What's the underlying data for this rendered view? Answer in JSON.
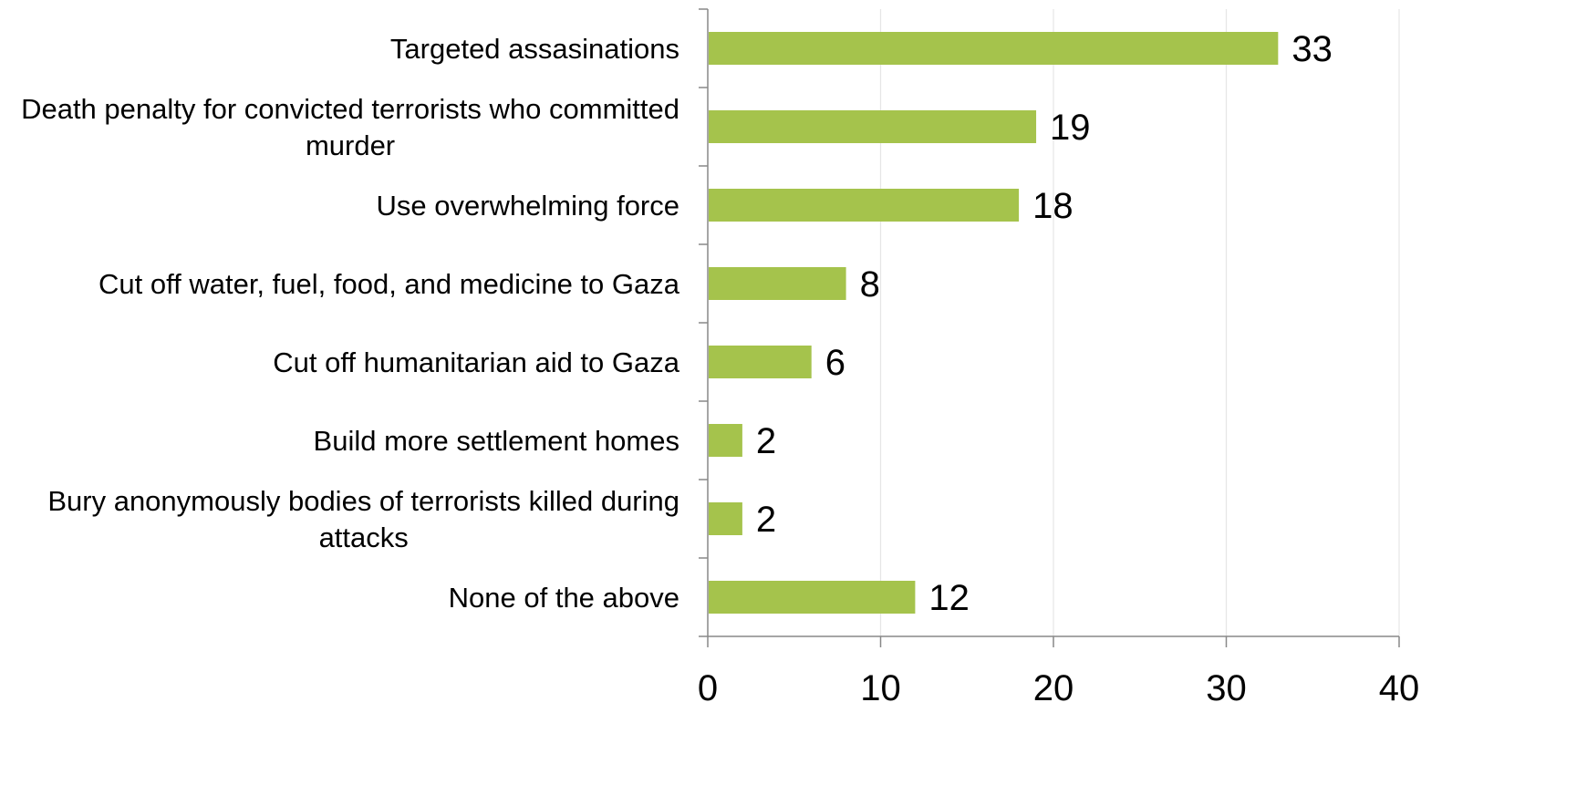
{
  "chart_data": {
    "type": "bar",
    "orientation": "horizontal",
    "title": "",
    "xlabel": "",
    "ylabel": "",
    "categories": [
      "Targeted assasinations",
      "Death penalty for convicted terrorists who committed murder",
      "Use overwhelming force",
      "Cut off water, fuel, food, and medicine to Gaza",
      "Cut off humanitarian aid to Gaza",
      "Build more settlement homes",
      "Bury anonymously bodies of terrorists killed during attacks",
      "None of the above"
    ],
    "category_lines": [
      [
        "Targeted assasinations"
      ],
      [
        "Death penalty for convicted terrorists who committed",
        "murder"
      ],
      [
        "Use overwhelming force"
      ],
      [
        "Cut off water, fuel, food, and medicine to Gaza"
      ],
      [
        "Cut off humanitarian aid to Gaza"
      ],
      [
        "Build more settlement homes"
      ],
      [
        "Bury anonymously bodies of terrorists killed during",
        "attacks"
      ],
      [
        "None of the above"
      ]
    ],
    "values": [
      33,
      19,
      18,
      8,
      6,
      2,
      2,
      12
    ],
    "xlim": [
      0,
      40
    ],
    "ticks": [
      0,
      10,
      20,
      30,
      40
    ],
    "tick_labels": [
      "0",
      "10",
      "20",
      "30",
      "40"
    ],
    "grid": "vertical",
    "legend": "none",
    "data_labels": true,
    "colors": {
      "bar": "#a5c34c",
      "grid": "#e6e6e6",
      "axis": "#888888",
      "text": "#000000"
    }
  }
}
